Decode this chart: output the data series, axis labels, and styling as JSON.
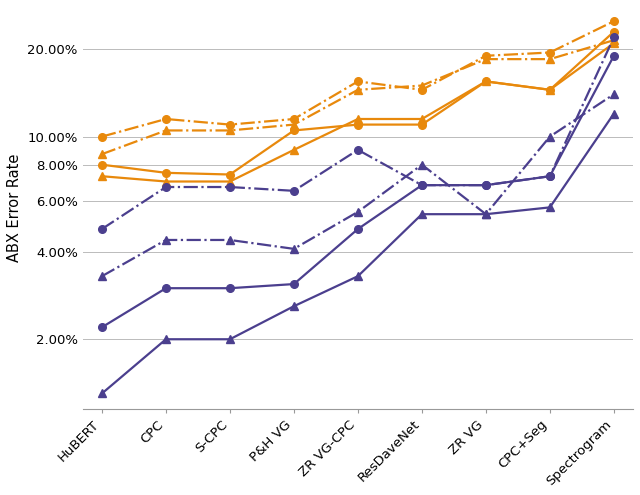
{
  "categories": [
    "HuBERT",
    "CPC",
    "S-CPC",
    "P&H VG",
    "ZR VG-CPC",
    "ResDaveNet",
    "ZR VG",
    "CPC+Seg",
    "Spectrogram"
  ],
  "series": [
    {
      "label": "orange_circle_solid",
      "color": "#E8890C",
      "linestyle": "-",
      "marker": "o",
      "values": [
        8.0,
        7.5,
        7.4,
        10.5,
        11.0,
        11.0,
        15.5,
        14.5,
        23.0
      ]
    },
    {
      "label": "orange_triangle_solid",
      "color": "#E8890C",
      "linestyle": "-",
      "marker": "^",
      "values": [
        7.3,
        7.0,
        7.0,
        9.0,
        11.5,
        11.5,
        15.5,
        14.5,
        21.0
      ]
    },
    {
      "label": "orange_circle_dashdot",
      "color": "#E8890C",
      "linestyle": "-.",
      "marker": "o",
      "values": [
        10.0,
        11.5,
        11.0,
        11.5,
        15.5,
        14.5,
        19.0,
        19.5,
        25.0
      ]
    },
    {
      "label": "orange_triangle_dashdot",
      "color": "#E8890C",
      "linestyle": "-.",
      "marker": "^",
      "values": [
        8.7,
        10.5,
        10.5,
        11.0,
        14.5,
        15.0,
        18.5,
        18.5,
        21.5
      ]
    },
    {
      "label": "purple_circle_solid",
      "color": "#4B3F8E",
      "linestyle": "-",
      "marker": "o",
      "values": [
        2.2,
        3.0,
        3.0,
        3.1,
        4.8,
        6.8,
        6.8,
        7.3,
        19.0
      ]
    },
    {
      "label": "purple_triangle_solid",
      "color": "#4B3F8E",
      "linestyle": "-",
      "marker": "^",
      "values": [
        1.3,
        2.0,
        2.0,
        2.6,
        3.3,
        5.4,
        5.4,
        5.7,
        12.0
      ]
    },
    {
      "label": "purple_circle_dashdot",
      "color": "#4B3F8E",
      "linestyle": "-.",
      "marker": "o",
      "values": [
        4.8,
        6.7,
        6.7,
        6.5,
        9.0,
        6.8,
        6.8,
        7.3,
        22.0
      ]
    },
    {
      "label": "purple_triangle_dashdot",
      "color": "#4B3F8E",
      "linestyle": "-.",
      "marker": "^",
      "values": [
        3.3,
        4.4,
        4.4,
        4.1,
        5.5,
        8.0,
        5.4,
        10.0,
        14.0
      ]
    }
  ],
  "ylabel": "ABX Error Rate",
  "ytick_positions": [
    2.0,
    4.0,
    6.0,
    8.0,
    10.0,
    20.0
  ],
  "ytick_labels": [
    "2.00%",
    "4.00%",
    "6.00%",
    "8.00%",
    "10.00%",
    "20.00%"
  ],
  "background_color": "#ffffff",
  "grid_color": "#bbbbbb",
  "linewidth": 1.6,
  "markersize": 5.5
}
